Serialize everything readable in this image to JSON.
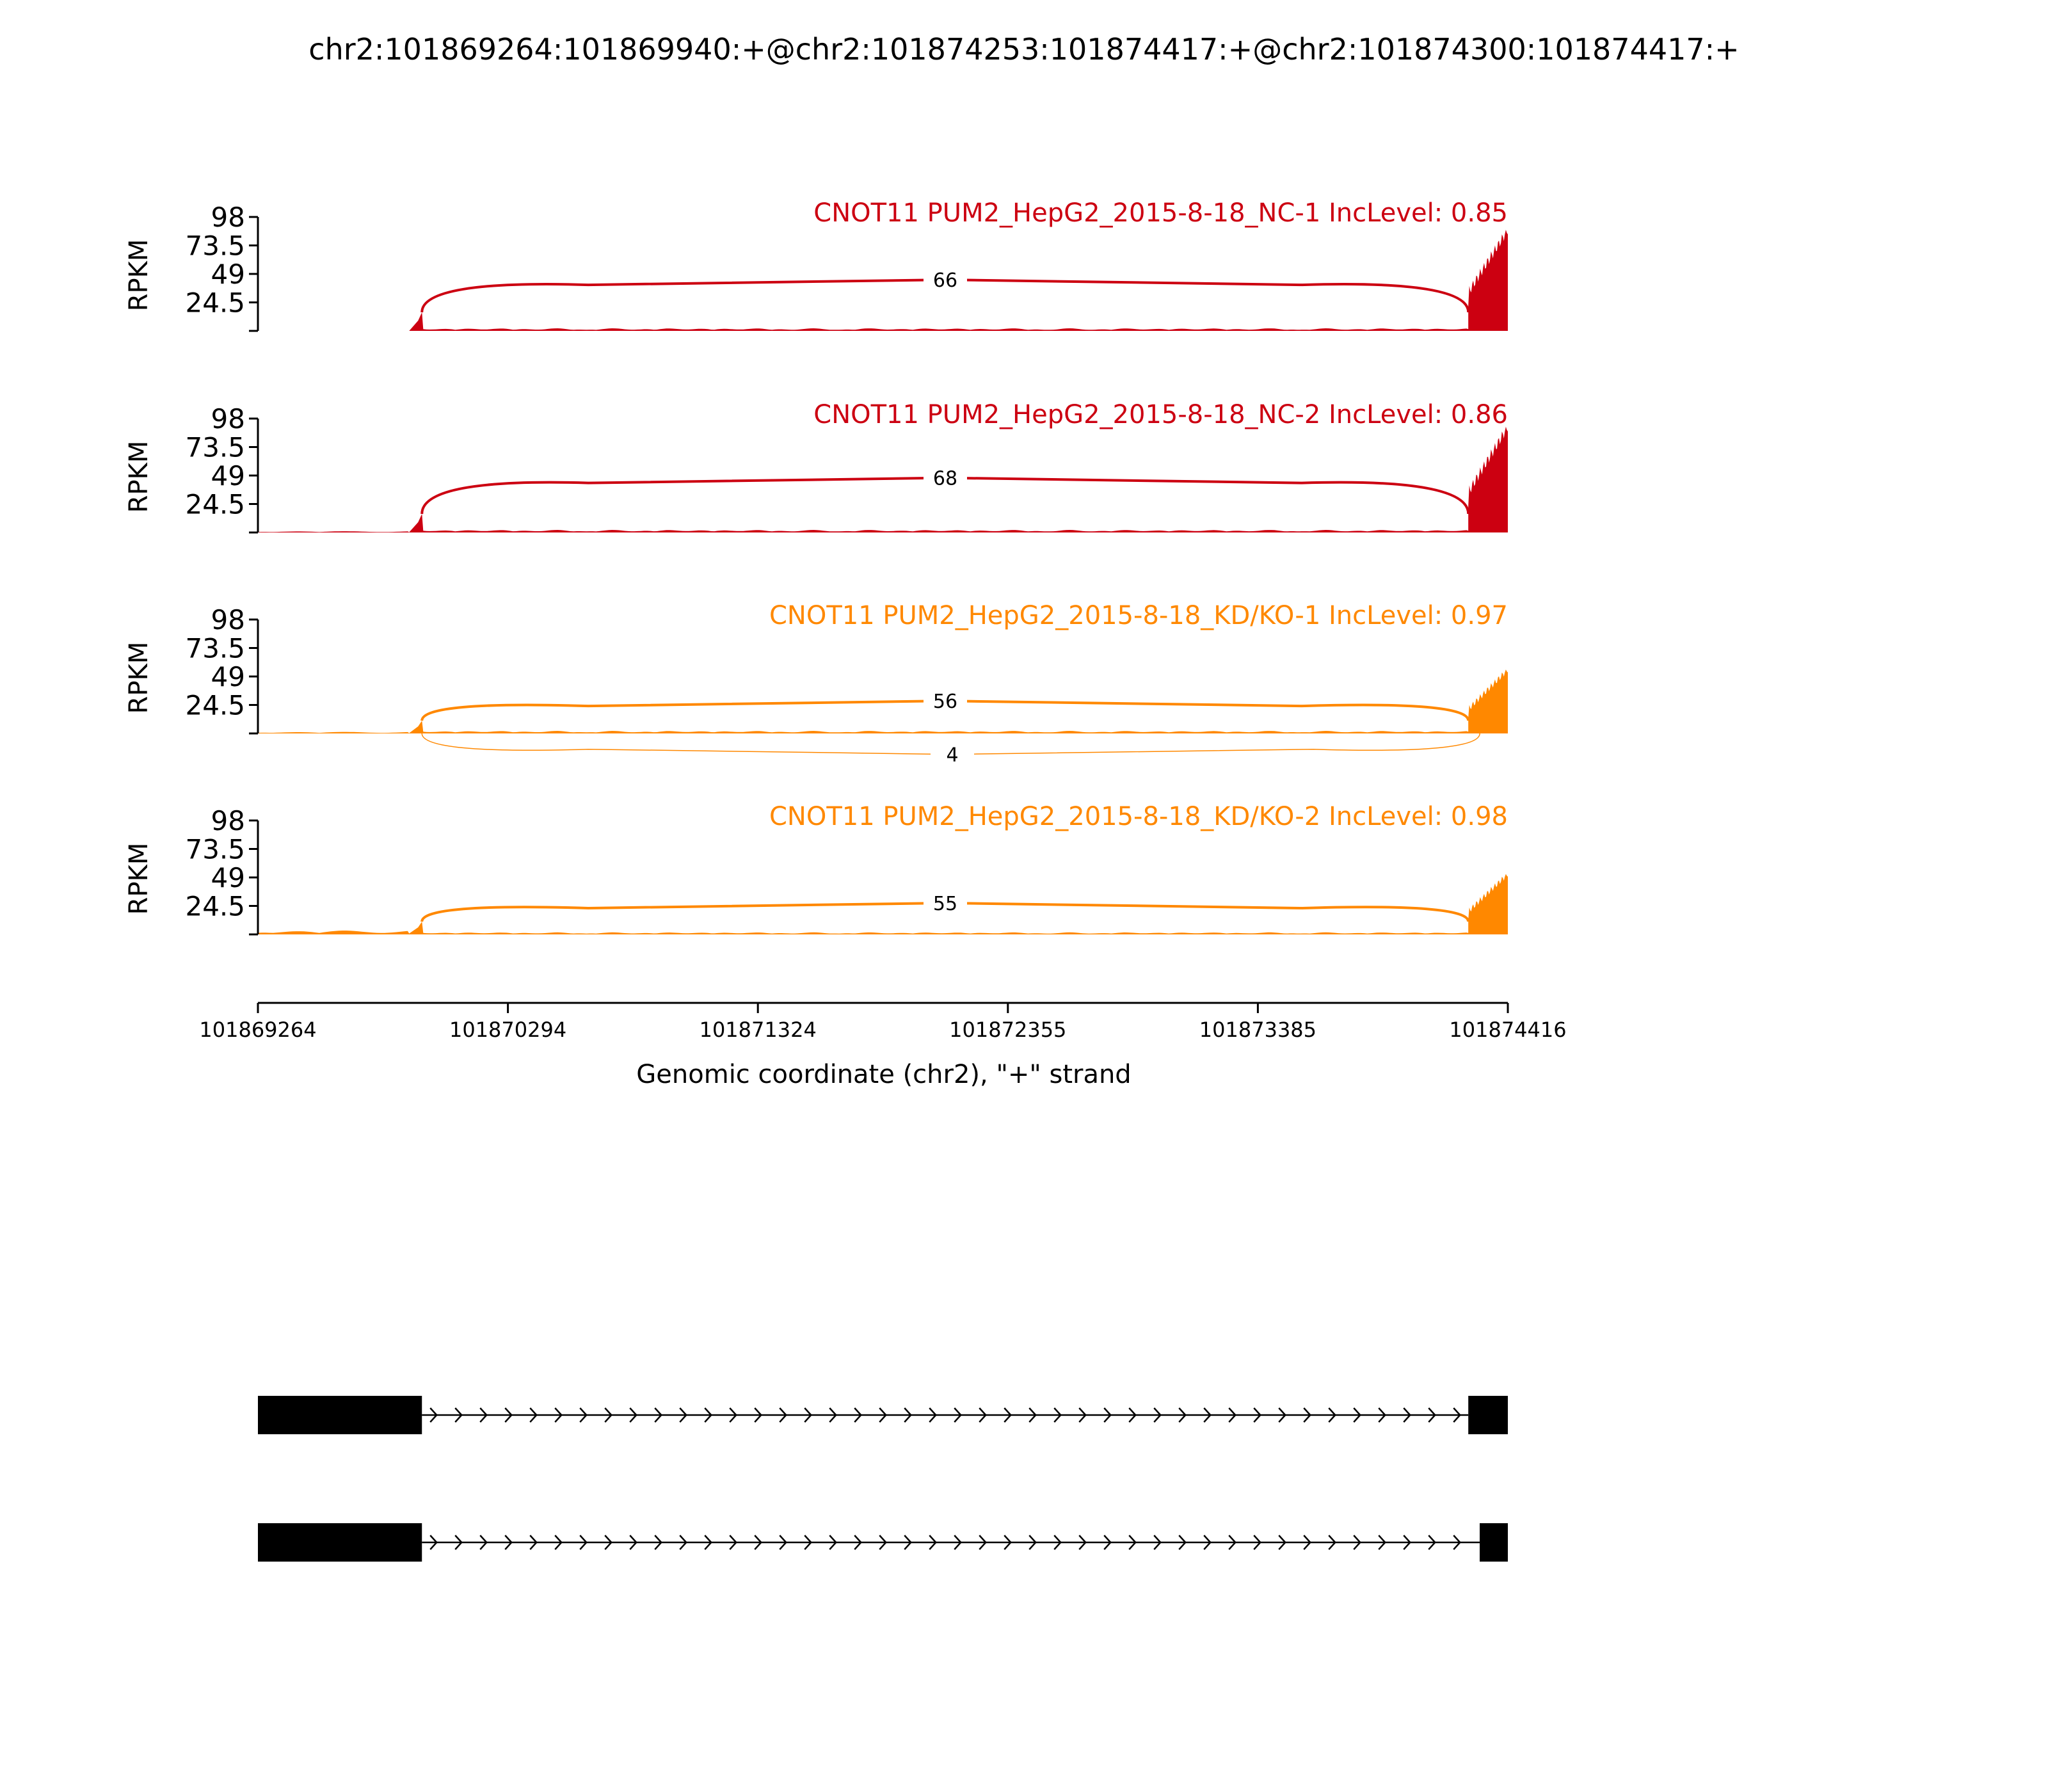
{
  "title": "chr2:101869264:101869940:+@chr2:101874253:101874417:+@chr2:101874300:101874417:+",
  "chart_data": {
    "type": "area",
    "subtype": "sashimi",
    "ylabel": "RPKM",
    "ylim": [
      0,
      98
    ],
    "yticks": [
      "98",
      "73.5",
      "49",
      "24.5"
    ],
    "xlabel": "Genomic coordinate (chr2), \"+\" strand",
    "xlim": [
      101869264,
      101874416
    ],
    "xticks": [
      "101869264",
      "101870294",
      "101871324",
      "101872355",
      "101873385",
      "101874416"
    ],
    "exon1_end": 101869940,
    "exon2_start": 101874253,
    "exon2b_start": 101874300,
    "tracks": [
      {
        "label": "CNOT11 PUM2_HepG2_2015-8-18_NC-1 IncLevel: 0.85",
        "color": "#cc0011",
        "left_peak": 16,
        "body_level": 1.5,
        "right_peak": 87,
        "pre_level": 0,
        "junctions": [
          {
            "label": "66",
            "height": 44,
            "above": true
          }
        ]
      },
      {
        "label": "CNOT11 PUM2_HepG2_2015-8-18_NC-2 IncLevel: 0.86",
        "color": "#cc0011",
        "left_peak": 16,
        "body_level": 1.5,
        "right_peak": 91,
        "pre_level": 0.8,
        "junctions": [
          {
            "label": "68",
            "height": 47,
            "above": true
          }
        ]
      },
      {
        "label": "CNOT11 PUM2_HepG2_2015-8-18_KD/KO-1 IncLevel: 0.97",
        "color": "#ff8800",
        "left_peak": 11,
        "body_level": 1.5,
        "right_peak": 55,
        "pre_level": 1,
        "junctions": [
          {
            "label": "56",
            "height": 28,
            "above": true
          },
          {
            "label": "4",
            "height": 18,
            "above": false
          }
        ]
      },
      {
        "label": "CNOT11 PUM2_HepG2_2015-8-18_KD/KO-2 IncLevel: 0.98",
        "color": "#ff8800",
        "left_peak": 11,
        "body_level": 1.2,
        "right_peak": 52,
        "pre_level": 2.5,
        "junctions": [
          {
            "label": "55",
            "height": 27,
            "above": true
          }
        ]
      }
    ],
    "transcripts": [
      {
        "exons": [
          [
            101869264,
            101869940
          ],
          [
            101874253,
            101874416
          ]
        ]
      },
      {
        "exons": [
          [
            101869264,
            101869940
          ],
          [
            101874300,
            101874416
          ]
        ]
      }
    ]
  }
}
